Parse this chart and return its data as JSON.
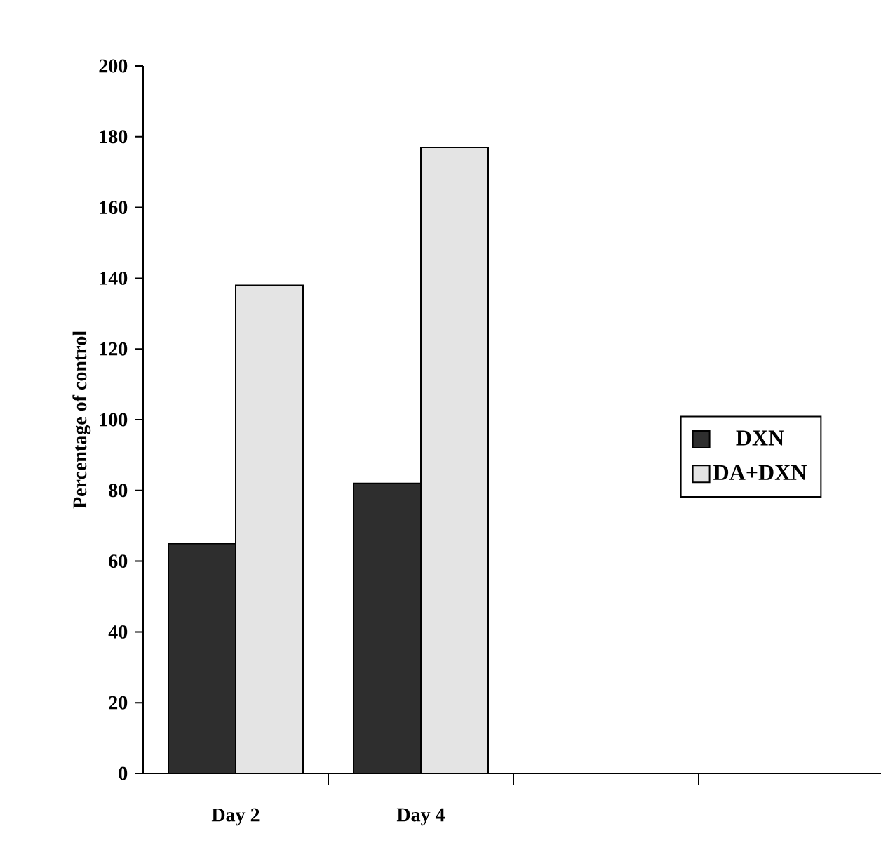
{
  "chart_data": {
    "type": "bar",
    "ylabel": "Percentage of control",
    "categories": [
      "Day 2",
      "Day 4",
      null,
      null
    ],
    "series": [
      {
        "name": "DXN",
        "color": "#2e2e2e",
        "values": [
          65,
          82,
          null,
          null
        ]
      },
      {
        "name": "DA+DXN",
        "color": "#e4e4e4",
        "values": [
          138,
          177,
          null,
          null
        ]
      }
    ],
    "ylim": [
      0,
      200
    ],
    "yticks": [
      0,
      20,
      40,
      60,
      80,
      100,
      120,
      140,
      160,
      180,
      200
    ],
    "legend": "right"
  }
}
